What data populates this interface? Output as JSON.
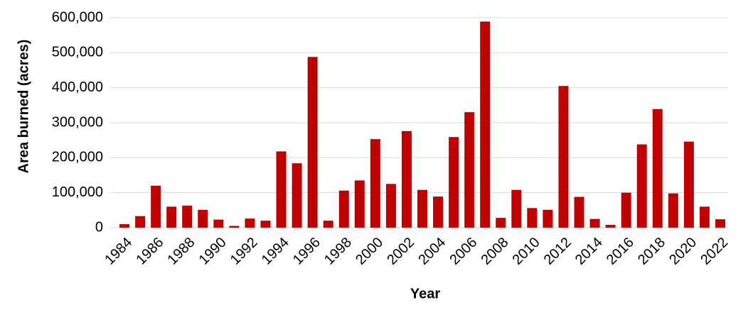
{
  "chart_data": {
    "type": "bar",
    "categories": [
      "1984",
      null,
      "1986",
      null,
      "1988",
      null,
      "1990",
      null,
      "1992",
      null,
      "1994",
      null,
      "1996",
      null,
      "1998",
      null,
      "2000",
      null,
      "2002",
      null,
      "2004",
      null,
      "2006",
      null,
      "2008",
      null,
      "2010",
      null,
      "2012",
      null,
      "2014",
      null,
      "2016",
      null,
      "2018",
      null,
      "2020",
      null,
      "2022"
    ],
    "values": [
      10000,
      33000,
      120000,
      60000,
      63000,
      51000,
      23000,
      5000,
      26000,
      20000,
      218000,
      184000,
      488000,
      20000,
      106000,
      135000,
      253000,
      125000,
      276000,
      108000,
      89000,
      259000,
      330000,
      589000,
      28000,
      108000,
      56000,
      51000,
      405000,
      88000,
      25000,
      8000,
      100000,
      238000,
      339000,
      98000,
      246000,
      60000,
      24000
    ],
    "color": "#c00000",
    "x_label": "Year",
    "y_label": "Area burned (acres)",
    "ylim": [
      0,
      600000
    ],
    "yticks": [
      0,
      {
        "value": 100000,
        "label": "100,000"
      },
      {
        "value": 200000,
        "label": "200,000"
      },
      {
        "value": 300000,
        "label": "300,000"
      },
      {
        "value": 400000,
        "label": "400,000"
      },
      {
        "value": 500000,
        "label": "500,000"
      },
      {
        "value": 600000,
        "label": "600,000"
      }
    ],
    "grid": true
  }
}
